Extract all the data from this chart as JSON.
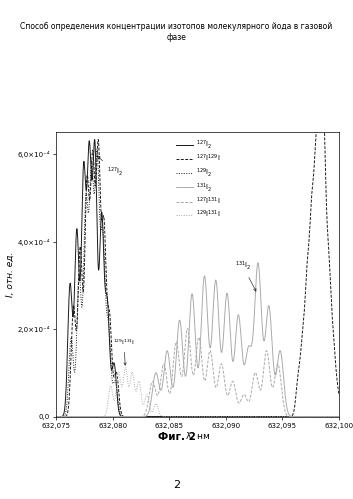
{
  "title": "Способ определения концентрации изотопов молекулярного йода в газовой\nфазе",
  "xlabel": "λ, нм",
  "ylabel": "I, отн. ед.",
  "fig_label": "Фиг. 2",
  "page_number": "2",
  "xmin": 632.075,
  "xmax": 632.1,
  "ymin": 0.0,
  "ymax": 0.00065,
  "ytick_vals": [
    0.0,
    0.0002,
    0.0004,
    0.0006
  ],
  "ytick_labels": [
    "0,0",
    "2,0×10⁻⁴",
    "4,0×10⁻⁴",
    "6,0×10⁻⁴"
  ],
  "xtick_vals": [
    632.075,
    632.08,
    632.085,
    632.09,
    632.095,
    632.1
  ],
  "xtick_labels": [
    "632,075",
    "632,080",
    "632,085",
    "632,090",
    "632,095",
    "632,100"
  ],
  "col_black": "#1a1a1a",
  "col_gray": "#aaaaaa",
  "background_color": "#ffffff"
}
